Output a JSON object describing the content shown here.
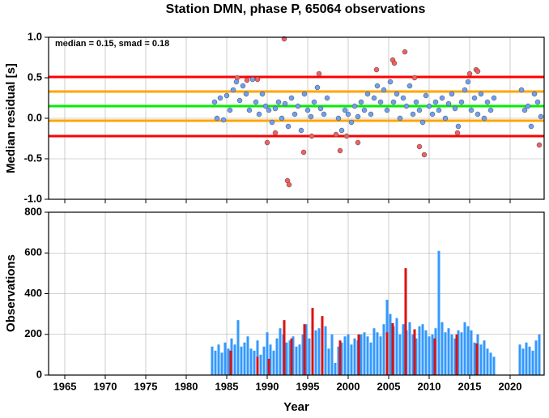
{
  "chart_data": [
    {
      "type": "scatter",
      "title": "Station DMN, phase P, 65064 observations",
      "ylabel": "Median residual [s]",
      "annotation": "median = 0.15, smad = 0.18",
      "xlim": [
        1963,
        2024.2
      ],
      "xticks": [
        1965,
        1970,
        1975,
        1980,
        1985,
        1990,
        1995,
        2000,
        2005,
        2010,
        2015,
        2020
      ],
      "ylim": [
        -1,
        1
      ],
      "yticks": [
        {
          "value": -1,
          "label": "-1.0"
        },
        {
          "value": -0.5,
          "label": "-0.5"
        },
        {
          "value": 0,
          "label": "0.0"
        },
        {
          "value": 0.5,
          "label": "0.5"
        },
        {
          "value": 1,
          "label": "1.0"
        }
      ],
      "grid": true,
      "hlines": [
        {
          "value": 0.51,
          "color": "#ff0000"
        },
        {
          "value": 0.33,
          "color": "#ffa500"
        },
        {
          "value": 0.15,
          "color": "#00ee00"
        },
        {
          "value": -0.03,
          "color": "#ffa500"
        },
        {
          "value": -0.22,
          "color": "#ff0000"
        }
      ],
      "series": [
        {
          "color": "#6fa0f0",
          "x": [
            1983.5,
            1983.8,
            1984.2,
            1984.6,
            1985.0,
            1985.4,
            1985.8,
            1986.2,
            1986.6,
            1987.0,
            1987.4,
            1987.8,
            1988.2,
            1988.6,
            1989.0,
            1989.4,
            1989.8,
            1990.2,
            1990.6,
            1991.0,
            1991.4,
            1991.8,
            1992.2,
            1992.6,
            1993.0,
            1993.4,
            1993.8,
            1994.2,
            1994.6,
            1995.0,
            1995.4,
            1995.8,
            1996.2,
            1996.6,
            1997.0,
            1997.4,
            1998.8,
            1999.2,
            1999.6,
            2000.0,
            2000.4,
            2000.8,
            2001.2,
            2001.6,
            2002.0,
            2002.4,
            2002.8,
            2003.2,
            2003.6,
            2004.0,
            2004.4,
            2004.8,
            2005.2,
            2005.6,
            2006.0,
            2006.4,
            2006.8,
            2007.2,
            2007.6,
            2008.0,
            2008.4,
            2008.8,
            2009.2,
            2009.6,
            2010.0,
            2010.4,
            2010.8,
            2011.2,
            2011.6,
            2012.0,
            2012.4,
            2012.8,
            2013.2,
            2013.6,
            2014.0,
            2014.4,
            2014.8,
            2015.2,
            2015.6,
            2016.0,
            2016.4,
            2016.8,
            2017.2,
            2017.6,
            2018.0,
            2021.4,
            2021.8,
            2022.2,
            2022.6,
            2023.0,
            2023.4,
            2023.8
          ],
          "values": [
            0.2,
            0.0,
            0.25,
            -0.02,
            0.28,
            0.1,
            0.35,
            0.45,
            0.22,
            0.4,
            0.3,
            0.1,
            0.48,
            0.2,
            0.05,
            0.3,
            0.15,
            0.1,
            -0.05,
            0.12,
            0.2,
            0.0,
            0.18,
            -0.1,
            0.25,
            0.05,
            0.15,
            -0.15,
            0.3,
            0.1,
            0.02,
            0.2,
            0.38,
            0.12,
            0.05,
            0.25,
            0.0,
            -0.15,
            0.1,
            0.05,
            -0.05,
            0.15,
            0.02,
            0.2,
            0.1,
            0.3,
            0.05,
            0.25,
            0.4,
            0.2,
            0.35,
            0.1,
            0.45,
            0.2,
            0.3,
            0.0,
            0.25,
            0.15,
            0.4,
            0.05,
            0.2,
            0.1,
            -0.05,
            0.28,
            0.15,
            0.05,
            0.2,
            0.1,
            0.25,
            0.0,
            0.18,
            0.3,
            0.12,
            -0.1,
            0.2,
            0.35,
            0.45,
            0.1,
            0.25,
            0.05,
            0.3,
            0.0,
            0.2,
            0.1,
            0.25,
            0.35,
            0.1,
            0.15,
            -0.1,
            0.3,
            0.2,
            0.02
          ]
        },
        {
          "color": "#f06060",
          "x": [
            1986.3,
            1987.5,
            1988.8,
            1990.0,
            1991.0,
            1992.1,
            1992.5,
            1992.7,
            1994.5,
            1995.5,
            1996.4,
            1998.5,
            1999.0,
            1999.8,
            2001.2,
            2003.5,
            2005.5,
            2005.7,
            2007.0,
            2008.2,
            2008.8,
            2009.4,
            2013.5,
            2015.0,
            2015.8,
            2016.0,
            2023.6
          ],
          "values": [
            0.5,
            0.47,
            0.48,
            -0.3,
            -0.18,
            0.98,
            -0.77,
            -0.82,
            -0.42,
            -0.22,
            0.55,
            -0.2,
            -0.4,
            -0.22,
            -0.3,
            0.6,
            0.72,
            0.68,
            0.82,
            0.5,
            -0.35,
            -0.45,
            -0.18,
            0.55,
            0.6,
            0.58,
            -0.33
          ]
        }
      ]
    },
    {
      "type": "bar",
      "ylabel": "Observations",
      "xlabel": "Year",
      "xlim": [
        1963,
        2024.2
      ],
      "xticks": [
        1965,
        1970,
        1975,
        1980,
        1985,
        1990,
        1995,
        2000,
        2005,
        2010,
        2015,
        2020
      ],
      "ylim": [
        0,
        800
      ],
      "yticks": [
        0,
        200,
        400,
        600,
        800
      ],
      "grid": true,
      "series": [
        {
          "color": "#3399ff",
          "x": [
            1983.2,
            1983.6,
            1984.0,
            1984.4,
            1984.8,
            1985.2,
            1985.6,
            1986.0,
            1986.4,
            1986.8,
            1987.2,
            1987.6,
            1988.0,
            1988.4,
            1988.8,
            1989.2,
            1989.6,
            1990.0,
            1990.4,
            1990.8,
            1991.2,
            1991.6,
            1992.0,
            1992.4,
            1992.8,
            1993.2,
            1993.6,
            1994.0,
            1994.4,
            1994.8,
            1995.2,
            1995.6,
            1996.0,
            1996.4,
            1996.8,
            1997.2,
            1997.6,
            1998.0,
            1998.4,
            1998.8,
            1999.2,
            1999.6,
            2000.0,
            2000.4,
            2000.8,
            2001.2,
            2001.6,
            2002.0,
            2002.4,
            2002.8,
            2003.2,
            2003.6,
            2004.0,
            2004.4,
            2004.8,
            2005.2,
            2005.6,
            2006.0,
            2006.4,
            2006.8,
            2007.2,
            2007.6,
            2008.0,
            2008.4,
            2008.8,
            2009.2,
            2009.6,
            2010.0,
            2010.4,
            2010.8,
            2011.2,
            2011.6,
            2012.0,
            2012.4,
            2012.8,
            2013.2,
            2013.6,
            2014.0,
            2014.4,
            2014.8,
            2015.2,
            2015.6,
            2016.0,
            2016.4,
            2016.8,
            2017.2,
            2017.6,
            2018.0,
            2021.2,
            2021.6,
            2022.0,
            2022.4,
            2022.8,
            2023.2,
            2023.6
          ],
          "values": [
            140,
            120,
            150,
            110,
            160,
            130,
            180,
            150,
            270,
            140,
            160,
            190,
            130,
            120,
            170,
            100,
            140,
            210,
            150,
            120,
            180,
            230,
            200,
            160,
            170,
            190,
            140,
            150,
            200,
            250,
            180,
            210,
            220,
            230,
            160,
            240,
            130,
            200,
            60,
            140,
            160,
            190,
            200,
            150,
            180,
            170,
            200,
            210,
            190,
            160,
            230,
            210,
            190,
            250,
            370,
            300,
            240,
            280,
            200,
            250,
            220,
            260,
            200,
            180,
            240,
            250,
            220,
            190,
            200,
            230,
            610,
            260,
            210,
            230,
            200,
            180,
            220,
            210,
            260,
            240,
            220,
            160,
            200,
            150,
            170,
            130,
            110,
            90,
            150,
            130,
            160,
            140,
            120,
            170,
            200
          ]
        },
        {
          "color": "#dd1111",
          "x": [
            1985.5,
            1988.8,
            1990.2,
            1992.1,
            1993.0,
            1994.6,
            1995.6,
            1996.8,
            1999.0,
            2001.3,
            2004.8,
            2005.5,
            2007.1,
            2008.2,
            2010.7,
            2013.4,
            2015.9
          ],
          "values": [
            120,
            90,
            80,
            270,
            180,
            250,
            330,
            290,
            170,
            200,
            210,
            255,
            525,
            225,
            180,
            200,
            155
          ]
        }
      ]
    }
  ]
}
